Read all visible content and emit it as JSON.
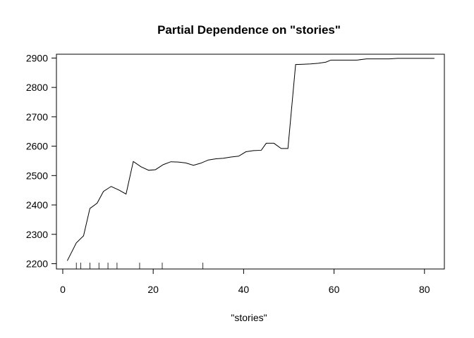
{
  "chart_data": {
    "type": "line",
    "title": "Partial Dependence on \"stories\"",
    "xlabel": "\"stories\"",
    "ylabel": "",
    "xlim": [
      -1.4,
      84.4
    ],
    "ylim": [
      2182,
      2913
    ],
    "x_ticks": [
      0,
      20,
      40,
      60,
      80
    ],
    "y_ticks": [
      2200,
      2300,
      2400,
      2500,
      2600,
      2700,
      2800,
      2900
    ],
    "grid": false,
    "legend": "none",
    "line_color": "#000000",
    "series": [
      {
        "x": [
          1,
          3,
          4.6,
          6,
          7.6,
          9,
          10.7,
          12.4,
          14,
          15.6,
          17.3,
          19,
          20.5,
          22.2,
          23.9,
          25.5,
          27.2,
          28.9,
          30.5,
          32.2,
          33.9,
          35.5,
          37.2,
          38.9,
          40.5,
          42.2,
          43.9,
          45,
          46.7,
          48.3,
          49.8,
          51.5,
          53.2,
          54.8,
          56.5,
          58.2,
          59.3,
          62,
          65,
          67.2,
          70,
          72.2,
          74,
          77,
          80,
          82.2
        ],
        "y": [
          2210,
          2271,
          2295,
          2388,
          2406,
          2446,
          2463,
          2451,
          2437,
          2548,
          2530,
          2518,
          2520,
          2537,
          2547,
          2546,
          2543,
          2535,
          2542,
          2553,
          2557,
          2559,
          2563,
          2566,
          2581,
          2585,
          2586,
          2610,
          2610,
          2592,
          2592,
          2878,
          2879,
          2880,
          2882,
          2886,
          2893,
          2893,
          2893,
          2897,
          2897,
          2897,
          2899,
          2899,
          2899,
          2899
        ]
      }
    ],
    "rug": [
      3,
      4,
      6,
      8,
      10,
      12,
      17,
      22,
      31
    ]
  }
}
